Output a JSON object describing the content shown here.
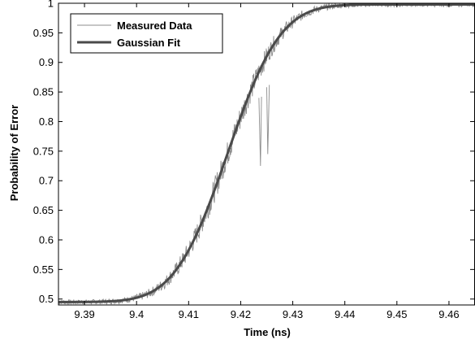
{
  "chart_data": {
    "type": "line",
    "xlabel": "Time (ns)",
    "ylabel": "Probability of Error",
    "xlim": [
      9.385,
      9.465
    ],
    "ylim": [
      0.49,
      1.0
    ],
    "x_ticks": [
      9.39,
      9.4,
      9.41,
      9.42,
      9.43,
      9.44,
      9.45,
      9.46
    ],
    "y_ticks": [
      0.5,
      0.55,
      0.6,
      0.65,
      0.7,
      0.75,
      0.8,
      0.85,
      0.9,
      0.95,
      1
    ],
    "grid": false,
    "legend_position": "top-left",
    "series": [
      {
        "name": "Measured Data",
        "color": "#8c8c8c",
        "style": "thin",
        "x": [
          9.385,
          9.39,
          9.395,
          9.4,
          9.403,
          9.406,
          9.409,
          9.412,
          9.415,
          9.418,
          9.42,
          9.422,
          9.4235,
          9.4238,
          9.424,
          9.425,
          9.4252,
          9.4255,
          9.427,
          9.43,
          9.433,
          9.436,
          9.44,
          9.445,
          9.45,
          9.455,
          9.46,
          9.465
        ],
        "y": [
          0.497,
          0.499,
          0.505,
          0.52,
          0.54,
          0.57,
          0.61,
          0.655,
          0.705,
          0.76,
          0.795,
          0.825,
          0.84,
          0.725,
          0.842,
          0.858,
          0.745,
          0.862,
          0.885,
          0.925,
          0.955,
          0.975,
          0.99,
          0.996,
          0.998,
          0.999,
          0.999,
          0.999
        ]
      },
      {
        "name": "Gaussian Fit",
        "color": "#4a4a4a",
        "style": "thick",
        "mean": 9.4175,
        "sigma": 0.008,
        "ymin": 0.495,
        "ymax": 0.998
      }
    ]
  }
}
